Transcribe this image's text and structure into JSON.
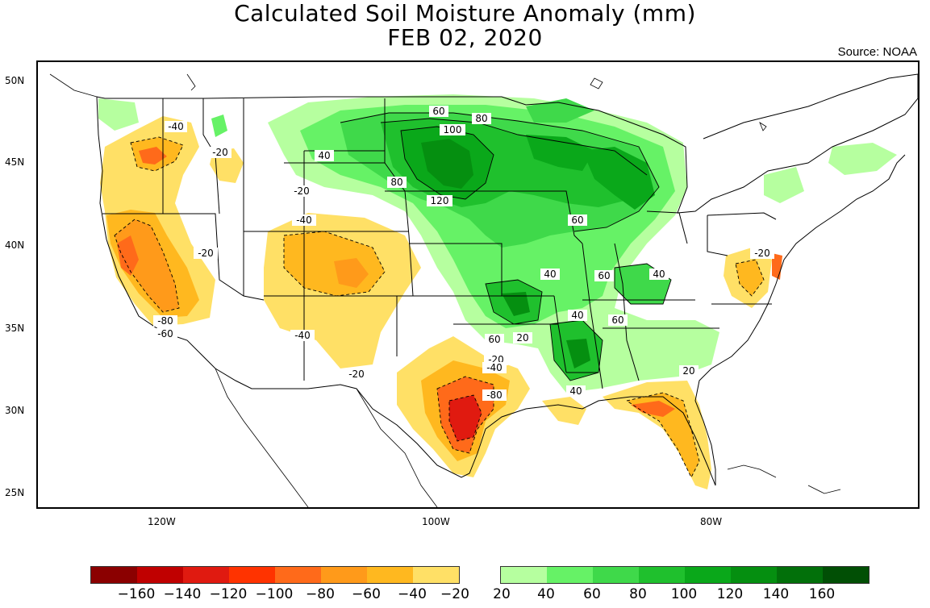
{
  "title": "Calculated Soil Moisture Anomaly (mm)",
  "date": "FEB 02, 2020",
  "source": "Source: NOAA",
  "lat_labels": [
    "50N",
    "45N",
    "40N",
    "35N",
    "30N",
    "25N"
  ],
  "lon_labels": [
    "120W",
    "100W",
    "80W"
  ],
  "colorbar": {
    "negative_colors": [
      "#8b0000",
      "#c00000",
      "#e01a10",
      "#ff3300",
      "#ff6a1a",
      "#ff9a1a",
      "#ffb81f",
      "#ffe066"
    ],
    "positive_colors": [
      "#b6ff9f",
      "#66f266",
      "#3fd94a",
      "#1fc02d",
      "#0aa81a",
      "#058f10",
      "#02700a",
      "#014f05"
    ],
    "ticks": [
      "−160",
      "−140",
      "−120",
      "−100",
      "−80",
      "−60",
      "−40",
      "−20",
      "20",
      "40",
      "60",
      "80",
      "100",
      "120",
      "140",
      "160"
    ]
  },
  "contour_labels": [
    {
      "text": "-40"
    },
    {
      "text": "-20"
    },
    {
      "text": "-20"
    },
    {
      "text": "-80"
    },
    {
      "text": "-60"
    },
    {
      "text": "-20"
    },
    {
      "text": "-40"
    },
    {
      "text": "-40"
    },
    {
      "text": "-20"
    },
    {
      "text": "40"
    },
    {
      "text": "60"
    },
    {
      "text": "80"
    },
    {
      "text": "100"
    },
    {
      "text": "80"
    },
    {
      "text": "120"
    },
    {
      "text": "60"
    },
    {
      "text": "40"
    },
    {
      "text": "60"
    },
    {
      "text": "40"
    },
    {
      "text": "40"
    },
    {
      "text": "60"
    },
    {
      "text": "60"
    },
    {
      "text": "20"
    },
    {
      "text": "-20"
    },
    {
      "text": "-40"
    },
    {
      "text": "-80"
    },
    {
      "text": "40"
    },
    {
      "text": "20"
    },
    {
      "text": "-20"
    }
  ]
}
